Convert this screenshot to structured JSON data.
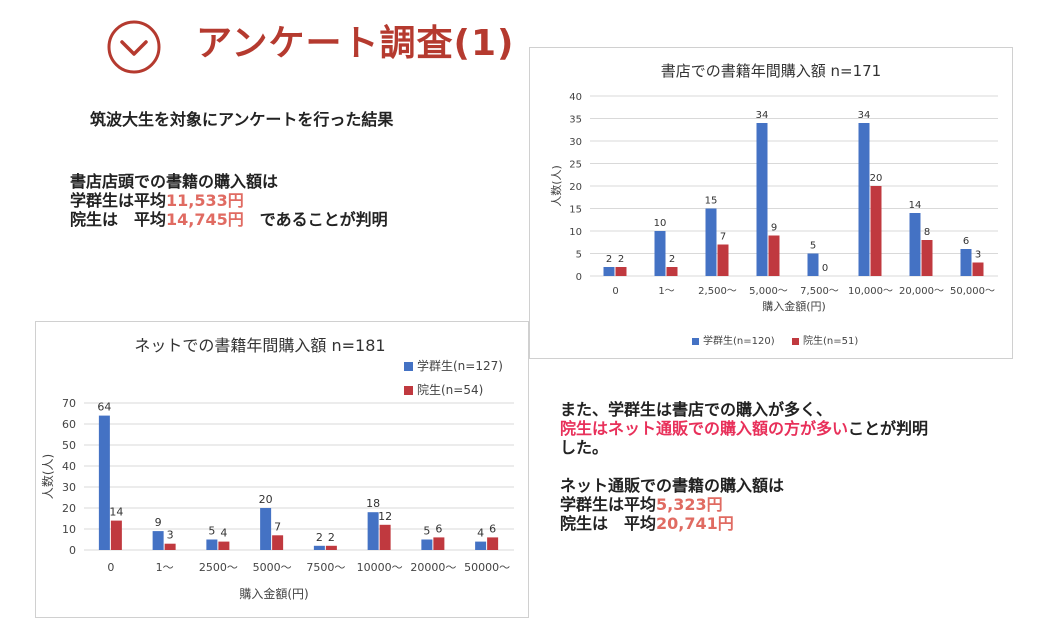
{
  "header": {
    "title": "アンケート調査(1)",
    "icon": "chevron-down-circle-icon",
    "accent": "#b53a2f"
  },
  "intro": "筑波大生を対象にアンケートを行った結果",
  "store_summary": {
    "line1": "書店店頭での書籍の購入額は",
    "line2_prefix": "学群生は平均",
    "line2_value": "11,533円",
    "line3_prefix": "院生は　平均",
    "line3_value": "14,745円",
    "line3_suffix": "　であることが判明"
  },
  "net_summary": {
    "line1": "また、学群生は書店での購入が多く、",
    "line2_highlight": "院生はネット通販での購入額の方が多い",
    "line2_suffix": "ことが判明",
    "line3": "した。",
    "line4": "ネット通販での書籍の購入額は",
    "line5_prefix": "学群生は平均",
    "line5_value": "5,323円",
    "line6_prefix": "院生は　平均",
    "line6_value": "20,741円"
  },
  "colors": {
    "series1": "#4472c4",
    "series2": "#c0393f",
    "value_text": "#e06b62",
    "highlight": "#e8305a"
  },
  "chart_data": [
    {
      "type": "bar",
      "title": "書店での書籍年間購入額 n=171",
      "categories": [
        "0",
        "1〜",
        "2,500〜",
        "5,000〜",
        "7,500〜",
        "10,000〜",
        "20,000〜",
        "50,000〜"
      ],
      "series": [
        {
          "name": "学群生(n=120)",
          "values": [
            2,
            10,
            15,
            34,
            5,
            34,
            14,
            6
          ]
        },
        {
          "name": "院生(n=51)",
          "values": [
            2,
            2,
            7,
            9,
            0,
            20,
            8,
            3
          ]
        }
      ],
      "xlabel": "購入金額(円)",
      "ylabel": "人数(人)",
      "ylim": [
        0,
        40
      ],
      "yticks": [
        0,
        5,
        10,
        15,
        20,
        25,
        30,
        35,
        40
      ],
      "grid": true,
      "legend": "bottom"
    },
    {
      "type": "bar",
      "title": "ネットでの書籍年間購入額 n=181",
      "categories": [
        "0",
        "1〜",
        "2500〜",
        "5000〜",
        "7500〜",
        "10000〜",
        "20000〜",
        "50000〜"
      ],
      "series": [
        {
          "name": "学群生(n=127)",
          "values": [
            64,
            9,
            5,
            20,
            2,
            18,
            5,
            4
          ]
        },
        {
          "name": "院生(n=54)",
          "values": [
            14,
            3,
            4,
            7,
            2,
            12,
            6,
            6
          ]
        }
      ],
      "xlabel": "購入金額(円)",
      "ylabel": "人数(人)",
      "ylim": [
        0,
        70
      ],
      "yticks": [
        0,
        10,
        20,
        30,
        40,
        50,
        60,
        70
      ],
      "grid": true,
      "legend": "top-right"
    }
  ]
}
